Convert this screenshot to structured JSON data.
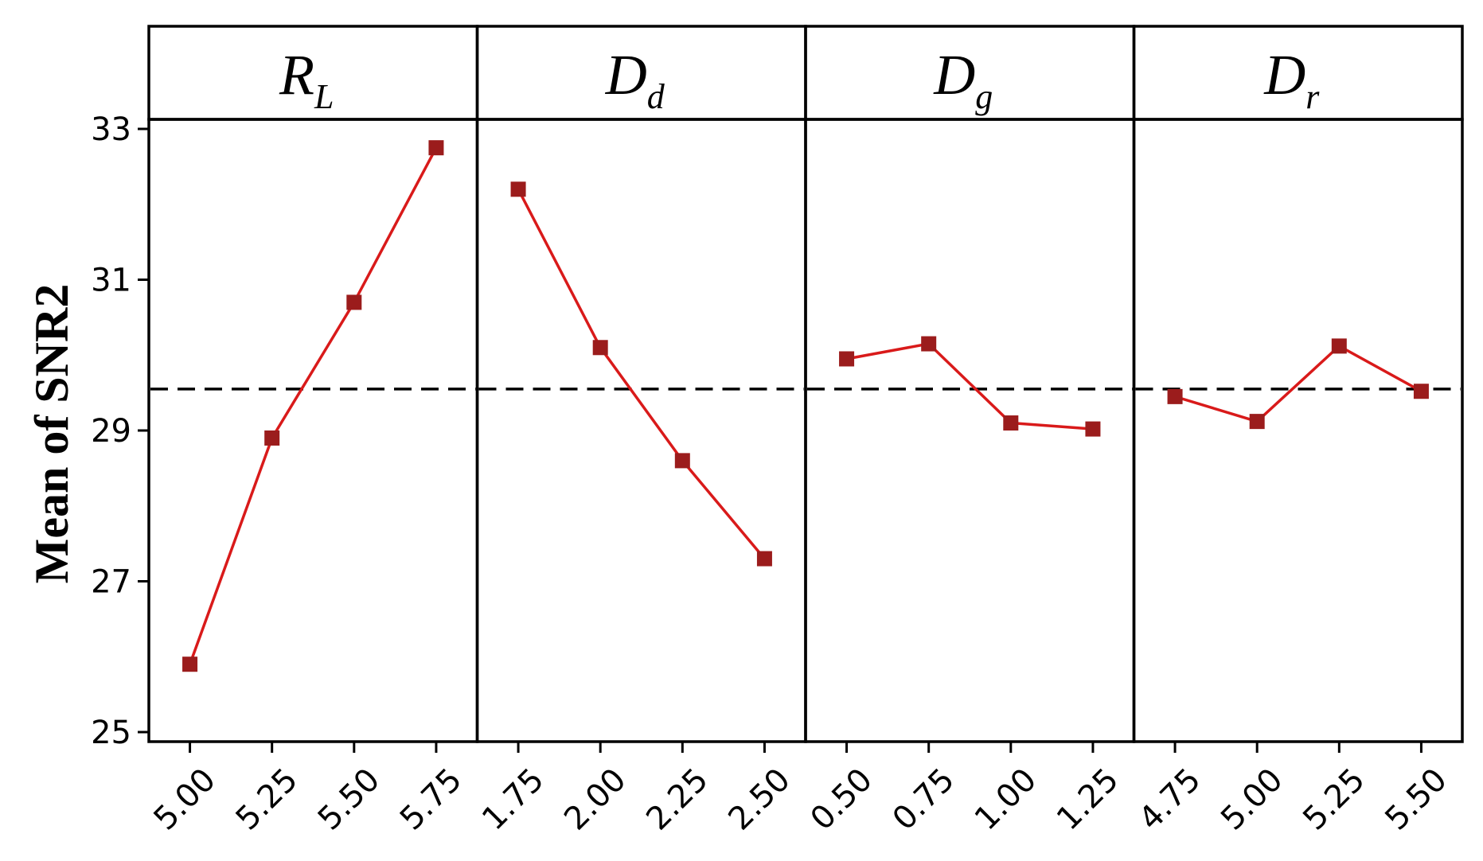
{
  "chart_data": {
    "type": "line",
    "ylabel": "Mean of SNR2",
    "ylim": [
      25,
      33
    ],
    "yticks": [
      "25",
      "27",
      "29",
      "31",
      "33"
    ],
    "reference_line": 29.55,
    "colors": {
      "line": "#d91a1a",
      "marker": "#9b1c1c",
      "reference": "#000000"
    },
    "panels": [
      {
        "name": "R",
        "subscript": "L",
        "x": [
          "5.00",
          "5.25",
          "5.50",
          "5.75"
        ],
        "values": [
          25.9,
          28.9,
          30.7,
          32.75
        ]
      },
      {
        "name": "D",
        "subscript": "d",
        "x": [
          "1.75",
          "2.00",
          "2.25",
          "2.50"
        ],
        "values": [
          32.2,
          30.1,
          28.6,
          27.3
        ]
      },
      {
        "name": "D",
        "subscript": "g",
        "x": [
          "0.50",
          "0.75",
          "1.00",
          "1.25"
        ],
        "values": [
          29.95,
          30.15,
          29.1,
          29.02
        ]
      },
      {
        "name": "D",
        "subscript": "r",
        "x": [
          "4.75",
          "5.00",
          "5.25",
          "5.50"
        ],
        "values": [
          29.45,
          29.12,
          30.12,
          29.52
        ]
      }
    ]
  }
}
